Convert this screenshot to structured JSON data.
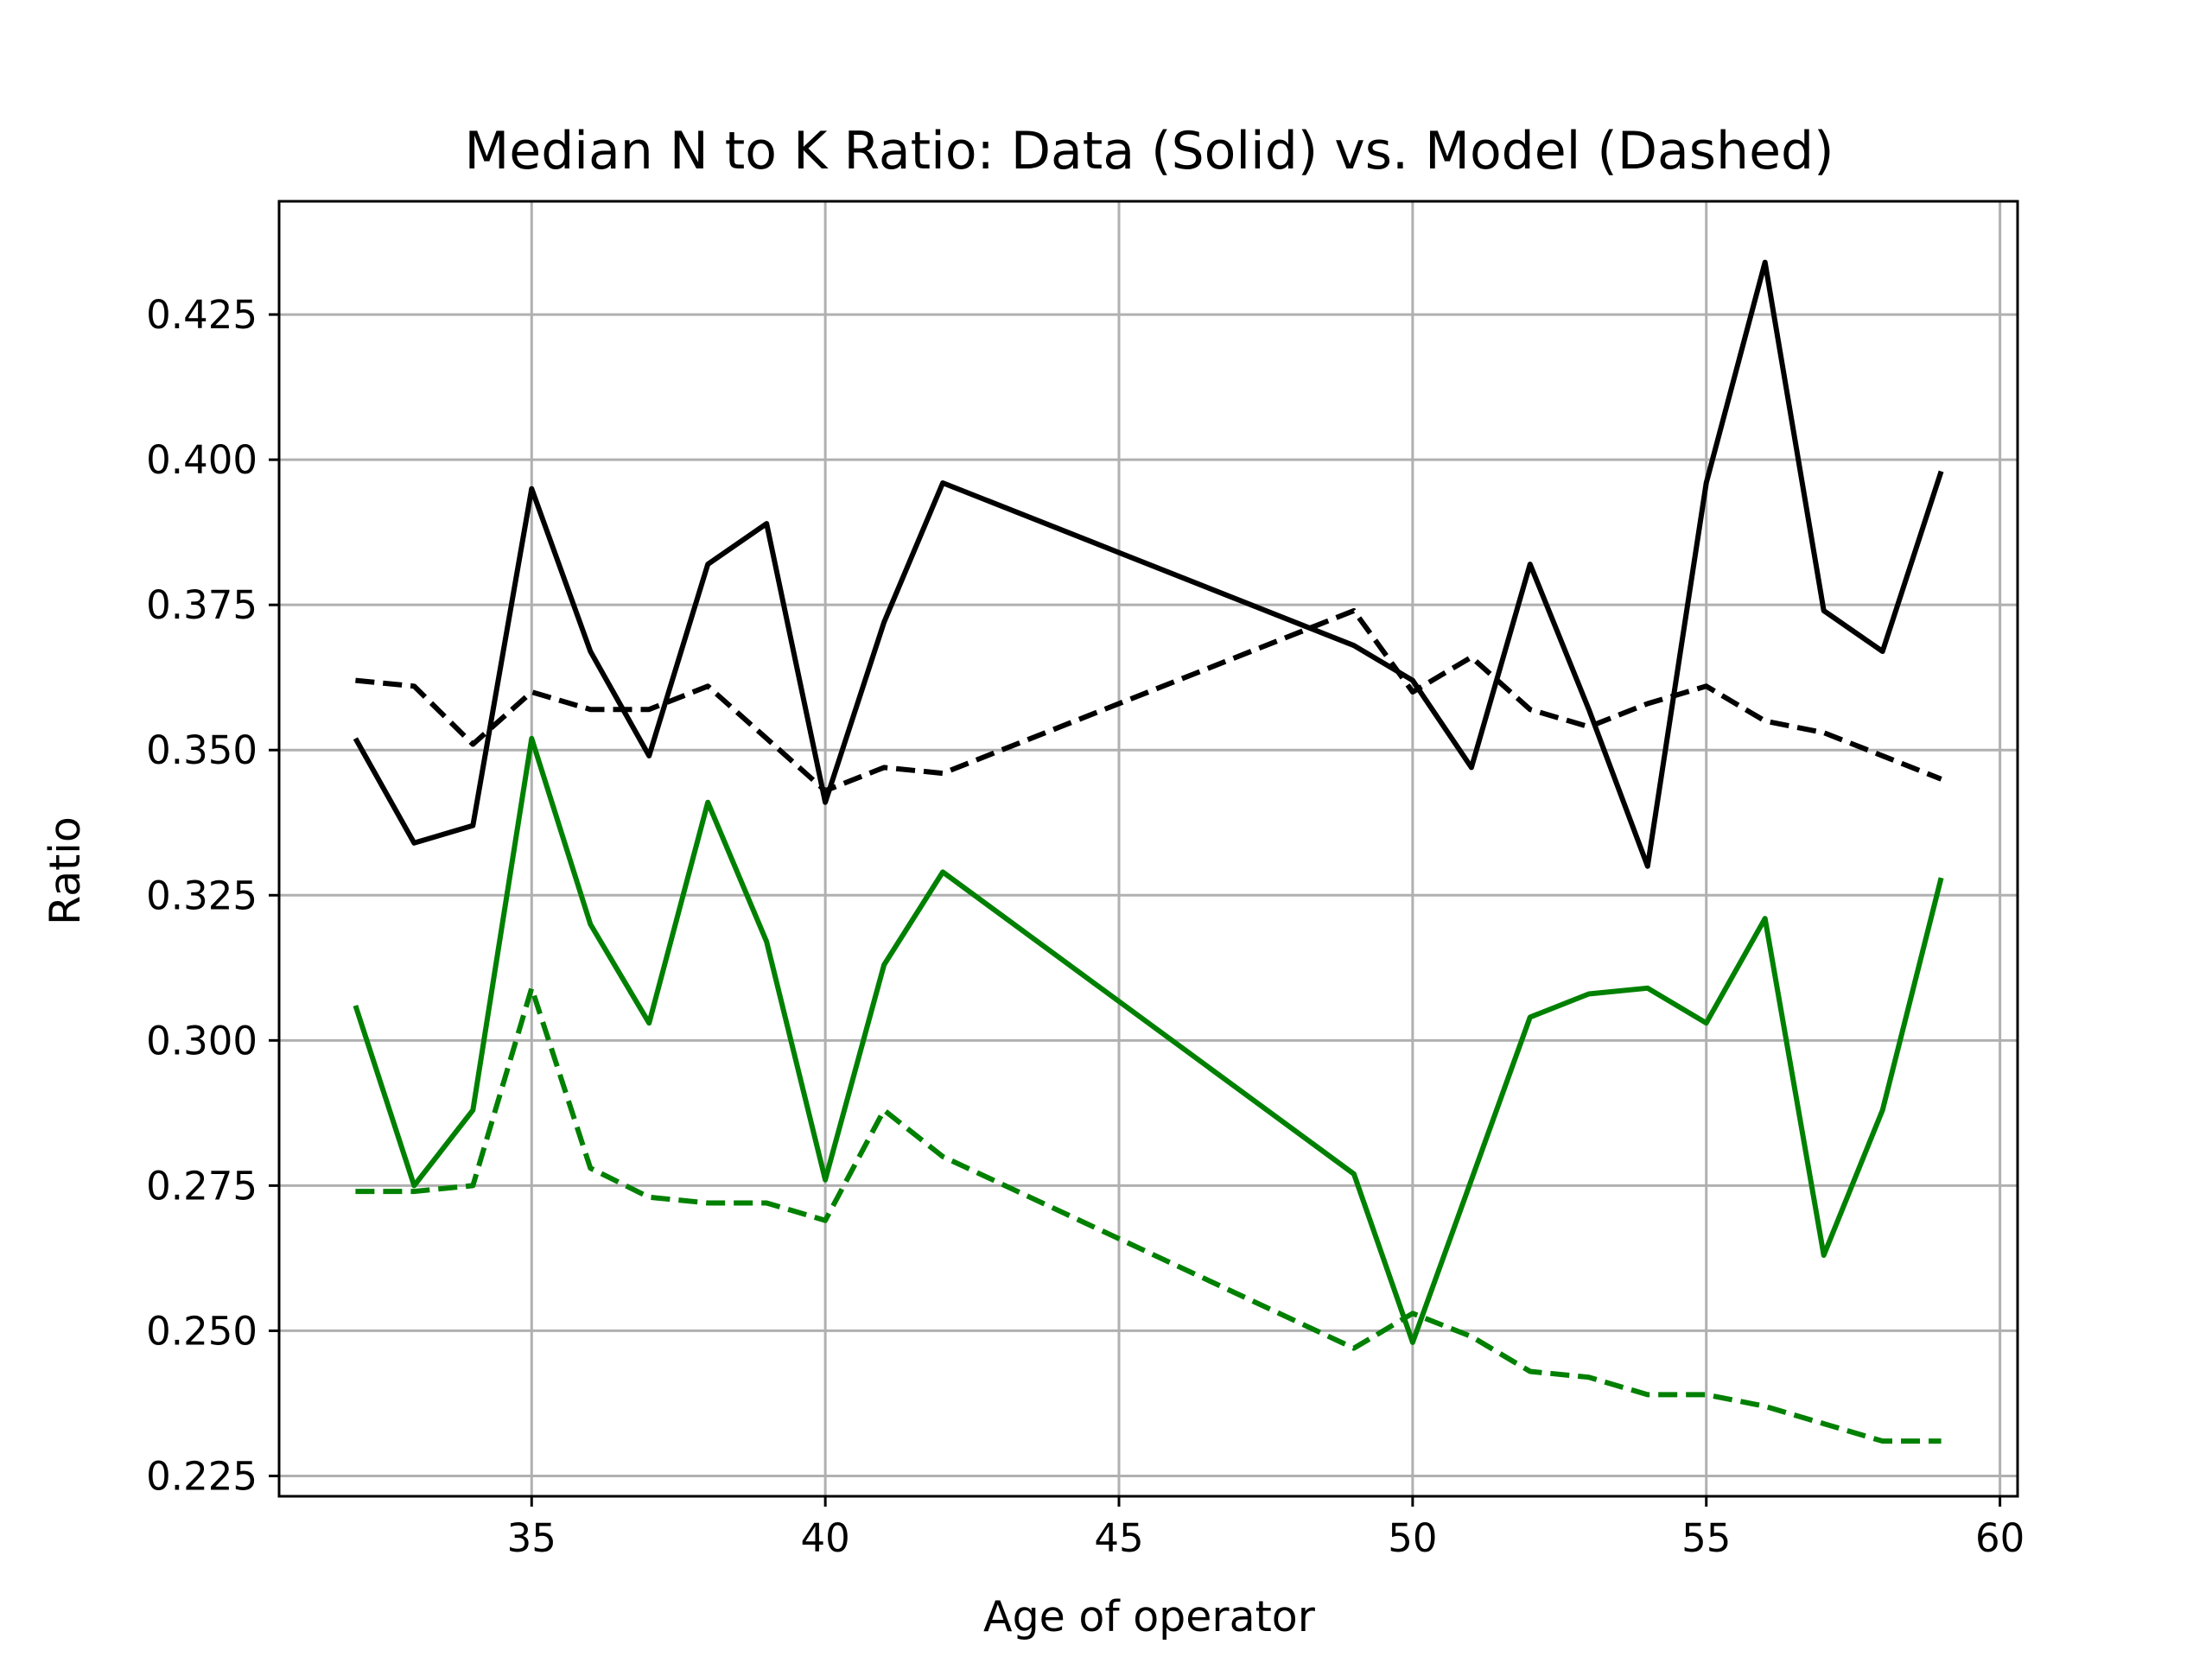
{
  "chart_data": {
    "type": "line",
    "title": "Median N to K Ratio: Data (Solid) vs. Model (Dashed)",
    "xlabel": "Age of operator",
    "ylabel": "Ratio",
    "xlim": [
      30.7,
      60.3
    ],
    "ylim": [
      0.2215,
      0.4445
    ],
    "xticks": [
      35,
      40,
      45,
      50,
      55,
      60
    ],
    "yticks": [
      0.225,
      0.25,
      0.275,
      0.3,
      0.325,
      0.35,
      0.375,
      0.4,
      0.425
    ],
    "xtick_labels": [
      "35",
      "40",
      "45",
      "50",
      "55",
      "60"
    ],
    "ytick_labels": [
      "0.225",
      "0.250",
      "0.275",
      "0.300",
      "0.325",
      "0.350",
      "0.375",
      "0.400",
      "0.425"
    ],
    "grid": true,
    "legend": false,
    "colors": {
      "black": "#000000",
      "green": "#008000",
      "grid": "#b0b0b0"
    },
    "series": [
      {
        "color": "black",
        "style": "solid",
        "x": [
          32,
          33,
          34,
          35,
          36,
          37,
          38,
          39,
          40,
          41,
          42,
          49,
          50,
          51,
          52,
          53,
          54,
          55,
          56,
          57,
          58,
          59
        ],
        "values": [
          0.352,
          0.334,
          0.337,
          0.395,
          0.367,
          0.349,
          0.382,
          0.389,
          0.341,
          0.372,
          0.396,
          0.368,
          0.362,
          0.347,
          0.382,
          0.357,
          0.33,
          0.396,
          0.434,
          0.374,
          0.367,
          0.398
        ]
      },
      {
        "color": "black",
        "style": "dashed",
        "x": [
          32,
          33,
          34,
          35,
          36,
          37,
          38,
          39,
          40,
          41,
          42,
          49,
          50,
          51,
          52,
          53,
          54,
          55,
          56,
          57,
          58,
          59
        ],
        "values": [
          0.362,
          0.361,
          0.351,
          0.36,
          0.357,
          0.357,
          0.361,
          0.352,
          0.343,
          0.347,
          0.346,
          0.374,
          0.36,
          0.366,
          0.357,
          0.354,
          0.358,
          0.361,
          0.355,
          0.353,
          0.349,
          0.345
        ]
      },
      {
        "color": "green",
        "style": "solid",
        "x": [
          32,
          33,
          34,
          35,
          36,
          37,
          38,
          39,
          40,
          41,
          42,
          49,
          50,
          51,
          52,
          53,
          54,
          55,
          56,
          57,
          58,
          59
        ],
        "values": [
          0.306,
          0.275,
          0.288,
          0.352,
          0.32,
          0.303,
          0.341,
          0.317,
          0.276,
          0.313,
          0.329,
          0.277,
          0.248,
          0.276,
          0.304,
          0.308,
          0.309,
          0.303,
          0.321,
          0.263,
          0.288,
          0.328
        ]
      },
      {
        "color": "green",
        "style": "dashed",
        "x": [
          32,
          33,
          34,
          35,
          36,
          37,
          38,
          39,
          40,
          41,
          42,
          49,
          50,
          51,
          52,
          53,
          54,
          55,
          56,
          57,
          58,
          59
        ],
        "values": [
          0.274,
          0.274,
          0.275,
          0.309,
          0.278,
          0.273,
          0.272,
          0.272,
          0.269,
          0.288,
          0.28,
          0.247,
          0.253,
          0.249,
          0.243,
          0.242,
          0.239,
          0.239,
          0.237,
          0.234,
          0.231,
          0.231
        ]
      }
    ]
  }
}
